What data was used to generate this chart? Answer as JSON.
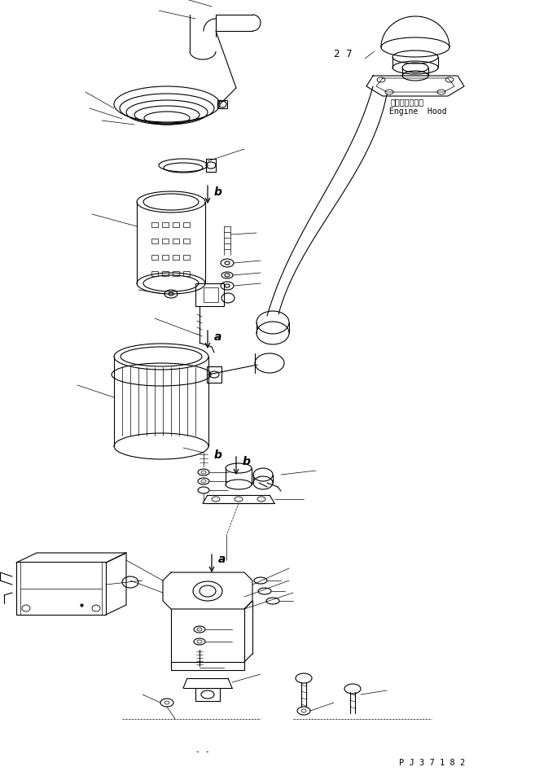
{
  "bg_color": "#ffffff",
  "line_color": "#000000",
  "fig_width": 6.57,
  "fig_height": 9.58,
  "dpi": 100,
  "part_code": "P J 3 7 1 8 2",
  "label_27": "2 7",
  "label_engine_hood_jp": "エンジンフード",
  "label_engine_hood_en": "Engine  Hood",
  "label_a": "a",
  "label_b": "b"
}
